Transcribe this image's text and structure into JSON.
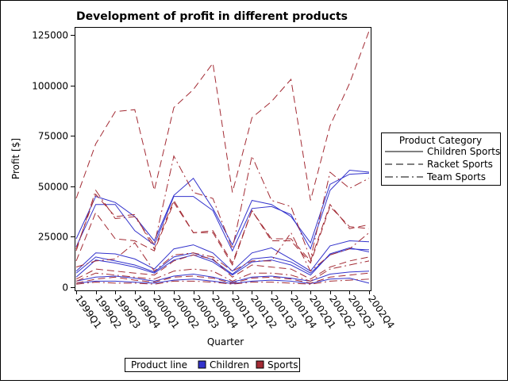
{
  "chart_data": {
    "type": "line",
    "title": "Development of profit in different products",
    "xlabel": "Quarter",
    "ylabel": "Profit [$]",
    "categories": [
      "1999Q1",
      "1999Q2",
      "1999Q3",
      "1999Q4",
      "2000Q1",
      "2000Q2",
      "2000Q3",
      "2000Q4",
      "2001Q1",
      "2001Q2",
      "2001Q3",
      "2001Q4",
      "2002Q1",
      "2002Q2",
      "2002Q3",
      "2002Q4"
    ],
    "y_ticks": [
      "0",
      "25000",
      "50000",
      "75000",
      "100000",
      "125000"
    ],
    "ylim": [
      0,
      127000
    ],
    "grid": false,
    "legend_category": {
      "title": "Product Category",
      "entries": [
        {
          "label": "Children Sports",
          "dash": "solid"
        },
        {
          "label": "Racket Sports",
          "dash": "dashed"
        },
        {
          "label": "Team Sports",
          "dash": "dash-dot"
        }
      ]
    },
    "legend_line": {
      "title": "Product line",
      "entries": [
        {
          "label": "Children",
          "color": "#3333cc"
        },
        {
          "label": "Sports",
          "color": "#a32b34"
        }
      ]
    },
    "series": [
      {
        "line": "Children",
        "category": "Children Sports",
        "color": "#3333cc",
        "dash": "solid",
        "values": [
          24000,
          45000,
          42000,
          35000,
          23000,
          45500,
          54000,
          39000,
          21000,
          43000,
          41000,
          35000,
          22000,
          51000,
          56000,
          56500
        ]
      },
      {
        "line": "Children",
        "category": "Children Sports",
        "color": "#3333cc",
        "dash": "solid",
        "values": [
          20000,
          41000,
          41000,
          28000,
          21000,
          45000,
          45000,
          38000,
          18000,
          39000,
          40000,
          36000,
          19000,
          48000,
          58000,
          57000
        ]
      },
      {
        "line": "Children",
        "category": "Children Sports",
        "color": "#3333cc",
        "dash": "solid",
        "values": [
          8000,
          17000,
          16500,
          14000,
          9000,
          19000,
          21000,
          17000,
          8000,
          17000,
          19500,
          14000,
          8000,
          20500,
          23000,
          22500
        ]
      },
      {
        "line": "Children",
        "category": "Children Sports",
        "color": "#3333cc",
        "dash": "solid",
        "values": [
          7000,
          15000,
          13000,
          11000,
          7500,
          15000,
          17000,
          13500,
          6500,
          14000,
          15000,
          12500,
          7000,
          16000,
          19000,
          18500
        ]
      },
      {
        "line": "Children",
        "category": "Children Sports",
        "color": "#3333cc",
        "dash": "solid",
        "values": [
          5000,
          13500,
          12000,
          10000,
          7000,
          13500,
          16000,
          12500,
          6000,
          12500,
          13500,
          11000,
          6000,
          16500,
          19500,
          17500
        ]
      },
      {
        "line": "Children",
        "category": "Children Sports",
        "color": "#3333cc",
        "dash": "solid",
        "values": [
          3000,
          5000,
          5500,
          4500,
          3000,
          5500,
          6500,
          5000,
          2500,
          5000,
          5500,
          4500,
          3000,
          6500,
          7500,
          8000
        ]
      },
      {
        "line": "Children",
        "category": "Children Sports",
        "color": "#3333cc",
        "dash": "solid",
        "values": [
          2000,
          3000,
          3000,
          2500,
          2000,
          3500,
          4000,
          3000,
          1800,
          3000,
          3500,
          3000,
          1800,
          4000,
          4500,
          2000
        ]
      },
      {
        "line": "Sports",
        "category": "Racket Sports",
        "color": "#a32b34",
        "dash": "dashed",
        "values": [
          44000,
          71000,
          87000,
          88000,
          48000,
          89000,
          98000,
          111000,
          47000,
          84000,
          92000,
          103000,
          43000,
          80000,
          101000,
          127000
        ]
      },
      {
        "line": "Sports",
        "category": "Team Sports",
        "color": "#a32b34",
        "dash": "dash-dot",
        "values": [
          18000,
          48000,
          34000,
          35000,
          21000,
          65000,
          47000,
          44000,
          19000,
          65000,
          43000,
          40000,
          14000,
          57000,
          49000,
          54000
        ]
      },
      {
        "line": "Sports",
        "category": "Racket Sports",
        "color": "#a32b34",
        "dash": "dashed",
        "values": [
          19000,
          46000,
          35000,
          36000,
          19000,
          43000,
          27000,
          28000,
          12000,
          38000,
          24000,
          24000,
          13000,
          41000,
          29000,
          31000
        ]
      },
      {
        "line": "Sports",
        "category": "Racket Sports",
        "color": "#a32b34",
        "dash": "dashed",
        "values": [
          13000,
          37000,
          24000,
          23000,
          18000,
          42000,
          27000,
          27000,
          11000,
          38000,
          23000,
          23000,
          12000,
          40000,
          30000,
          29000
        ]
      },
      {
        "line": "Sports",
        "category": "Team Sports",
        "color": "#a32b34",
        "dash": "dash-dot",
        "values": [
          10000,
          13000,
          14000,
          22000,
          8000,
          16000,
          17000,
          15000,
          8000,
          13000,
          13000,
          27000,
          8000,
          16000,
          19000,
          27000
        ]
      },
      {
        "line": "Sports",
        "category": "Racket Sports",
        "color": "#a32b34",
        "dash": "dashed",
        "values": [
          4000,
          9000,
          8000,
          7000,
          6000,
          13000,
          16000,
          14000,
          5000,
          11000,
          10000,
          9000,
          4000,
          10000,
          13000,
          15000
        ]
      },
      {
        "line": "Sports",
        "category": "Team Sports",
        "color": "#a32b34",
        "dash": "dash-dot",
        "values": [
          3000,
          7000,
          6000,
          5000,
          4000,
          8000,
          9000,
          8000,
          3000,
          7000,
          7000,
          6000,
          3000,
          9000,
          11000,
          13000
        ]
      },
      {
        "line": "Sports",
        "category": "Racket Sports",
        "color": "#a32b34",
        "dash": "dashed",
        "values": [
          2000,
          4000,
          5000,
          3500,
          2500,
          5000,
          5500,
          4500,
          2000,
          4500,
          5000,
          4000,
          2000,
          5000,
          6000,
          7000
        ]
      },
      {
        "line": "Sports",
        "category": "Team Sports",
        "color": "#a32b34",
        "dash": "dash-dot",
        "values": [
          1500,
          2500,
          2000,
          2000,
          1500,
          3000,
          3000,
          2500,
          1500,
          2500,
          2500,
          2000,
          1500,
          3000,
          3500,
          4000
        ]
      }
    ]
  }
}
